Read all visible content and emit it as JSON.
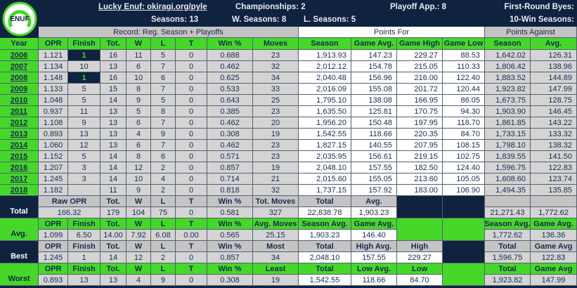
{
  "logo": {
    "text": "ENUF"
  },
  "header": {
    "title": "Lucky Enuf: okiragi.org/pyle",
    "championships": "Championships: 2",
    "playoff_app": "Playoff App.: 8",
    "first_round_byes": "First-Round Byes:",
    "seasons": "Seasons: 13",
    "w_seasons": "W. Seasons: 8",
    "l_seasons": "L. Seasons: 5",
    "ten_win_seasons": "10-Win Seasons:",
    "record_label": "Record: Reg. Season + Playoffs",
    "points_for_label": "Points For",
    "points_against_label": "Points Against"
  },
  "table": {
    "columns": [
      "Year",
      "OPR",
      "Finish",
      "Tot.",
      "W",
      "L",
      "T",
      "Win %",
      "Moves",
      "Season",
      "Game Avg.",
      "Game High",
      "Game Low",
      "Season",
      "Avg."
    ],
    "rows": [
      [
        "2006",
        "1.121",
        "1",
        "16",
        "11",
        "5",
        "0",
        "0.688",
        "23",
        "1,913.93",
        "147.23",
        "229.27",
        "88.53",
        "1,642.02",
        "126.31"
      ],
      [
        "2007",
        "1.134",
        "10",
        "13",
        "6",
        "7",
        "0",
        "0.462",
        "32",
        "2,012.12",
        "154.78",
        "215.05",
        "110.33",
        "1,806.42",
        "138.96"
      ],
      [
        "2008",
        "1.148",
        "1",
        "16",
        "10",
        "6",
        "0",
        "0.625",
        "34",
        "2,040.48",
        "156.96",
        "216.00",
        "122.40",
        "1,883.52",
        "144.89"
      ],
      [
        "2009",
        "1.133",
        "5",
        "15",
        "8",
        "7",
        "0",
        "0.533",
        "33",
        "2,016.09",
        "155.08",
        "201.72",
        "120.44",
        "1,923.82",
        "147.99"
      ],
      [
        "2010",
        "1.048",
        "5",
        "14",
        "9",
        "5",
        "0",
        "0.643",
        "25",
        "1,795.10",
        "138.08",
        "166.95",
        "86.05",
        "1,673.75",
        "128.75"
      ],
      [
        "2011",
        "0.937",
        "11",
        "13",
        "5",
        "8",
        "0",
        "0.385",
        "23",
        "1,635.50",
        "125.81",
        "170.75",
        "94.30",
        "1,903.90",
        "146.45"
      ],
      [
        "2012",
        "1.108",
        "9",
        "13",
        "6",
        "7",
        "0",
        "0.462",
        "20",
        "1,956.20",
        "150.48",
        "197.95",
        "118.70",
        "1,861.85",
        "143.22"
      ],
      [
        "2013",
        "0.893",
        "13",
        "13",
        "4",
        "9",
        "0",
        "0.308",
        "19",
        "1,542.55",
        "118.66",
        "220.35",
        "84.70",
        "1,733.15",
        "133.32"
      ],
      [
        "2014",
        "1.060",
        "12",
        "13",
        "6",
        "7",
        "0",
        "0.462",
        "23",
        "1,827.15",
        "140.55",
        "207.95",
        "108.15",
        "1,798.10",
        "138.32"
      ],
      [
        "2015",
        "1.152",
        "5",
        "14",
        "8",
        "6",
        "0",
        "0.571",
        "23",
        "2,035.95",
        "156.61",
        "219.15",
        "102.75",
        "1,839.55",
        "141.50"
      ],
      [
        "2016",
        "1.207",
        "3",
        "14",
        "12",
        "2",
        "0",
        "0.857",
        "19",
        "2,048.10",
        "157.55",
        "182.50",
        "124.40",
        "1,596.75",
        "122.83"
      ],
      [
        "2017",
        "1.245",
        "3",
        "14",
        "10",
        "4",
        "0",
        "0.714",
        "21",
        "2,015.60",
        "155.05",
        "213.60",
        "105.05",
        "1,608.60",
        "123.74"
      ],
      [
        "2018",
        "1.182",
        null,
        "11",
        "9",
        "2",
        "0",
        "0.818",
        "32",
        "1,737.15",
        "157.92",
        "183.00",
        "106.90",
        "1,494.35",
        "135.85"
      ]
    ],
    "summary": [
      {
        "label": "Total",
        "headers": [
          "Raw OPR",
          "Tot.",
          "W",
          "L",
          "T",
          "Win %",
          "Tot. Moves",
          "Total",
          "Avg.",
          null,
          null,
          null,
          null
        ],
        "values": [
          "166.32",
          "179",
          "104",
          "75",
          "0",
          "0.581",
          "327",
          "22,838.78",
          "1,903.23",
          null,
          null,
          "21,271.43",
          "1,772.62"
        ]
      },
      {
        "label": "Avg.",
        "headers": [
          "OPR",
          "Finish",
          "Tot.",
          "W",
          "L",
          "T",
          "Win %",
          "Avg. Moves",
          "Season Avg.",
          "Game Avg.",
          null,
          null,
          "Season Avg.",
          "Game Avg."
        ],
        "values": [
          "1.099",
          "6.50",
          "14.00",
          "7.92",
          "6.08",
          "0.00",
          "0.565",
          "25.15",
          "1,903.23",
          "146.40",
          null,
          null,
          "1,772.62",
          "136.36"
        ]
      },
      {
        "label": "Best",
        "headers": [
          "OPR",
          "Finish",
          "Tot.",
          "W",
          "L",
          "T",
          "Win %",
          "Most",
          "Total",
          "High Avg.",
          "High",
          null,
          "Total",
          "Game Avg"
        ],
        "values": [
          "1.245",
          "1",
          "14",
          "12",
          "2",
          "0",
          "0.857",
          "34",
          "2,048.10",
          "157.55",
          "229.27",
          null,
          "1,596.75",
          "122.83"
        ]
      },
      {
        "label": "Worst",
        "headers": [
          "OPR",
          "Finish",
          "Tot.",
          "W",
          "L",
          "T",
          "Win %",
          "Least",
          "Total",
          "Low Avg.",
          "Low",
          null,
          "Total",
          "Game Avg"
        ],
        "values": [
          "0.893",
          "13",
          "13",
          "4",
          "9",
          "0",
          "0.308",
          "19",
          "1,542.55",
          "118.66",
          "84.70",
          null,
          "1,923.82",
          "147.99"
        ]
      }
    ]
  }
}
